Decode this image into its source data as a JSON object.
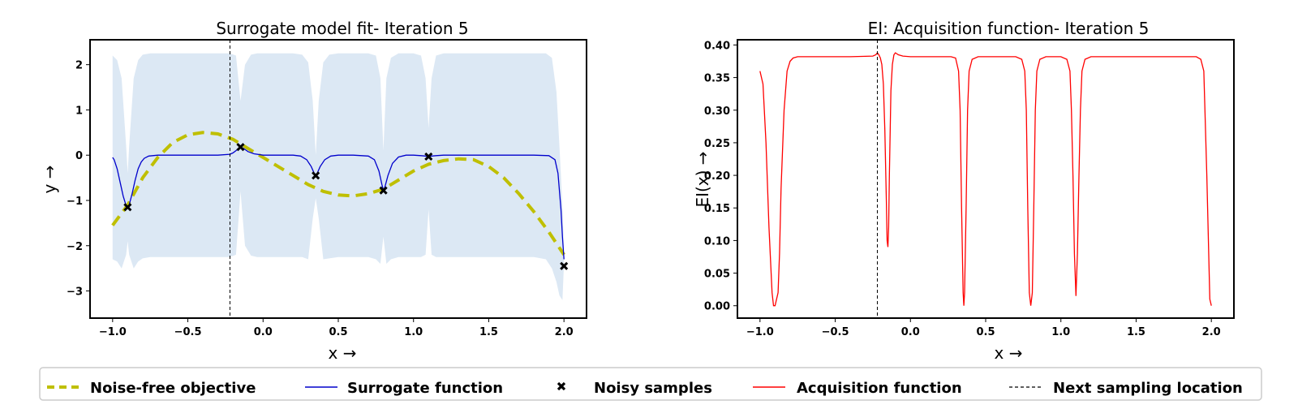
{
  "colors": {
    "objective": "#bfbf00",
    "surrogate": "#0000cc",
    "confidence": "#dce8f4",
    "acquisition": "#ff0000",
    "next": "#000000",
    "samples": "#000000"
  },
  "chart_data": [
    {
      "type": "line",
      "title": "Surrogate model fit- Iteration 5",
      "xlabel": "x →",
      "ylabel": "y →",
      "xlim": [
        -1.15,
        2.15
      ],
      "ylim": [
        -3.6,
        2.55
      ],
      "xticks": [
        -1.0,
        -0.5,
        0.0,
        0.5,
        1.0,
        1.5,
        2.0
      ],
      "xtick_labels": [
        "−1.0",
        "−0.5",
        "0.0",
        "0.5",
        "1.0",
        "1.5",
        "2.0"
      ],
      "yticks": [
        2,
        1,
        0,
        -1,
        -2,
        -3
      ],
      "ytick_labels": [
        "2",
        "1",
        "0",
        "−1",
        "−2",
        "−3"
      ],
      "next_sampling_x": -0.22,
      "series": [
        {
          "name": "Noise-free objective",
          "x": [
            -1.0,
            -0.9,
            -0.8,
            -0.7,
            -0.6,
            -0.5,
            -0.4,
            -0.3,
            -0.2,
            -0.1,
            0.0,
            0.1,
            0.2,
            0.3,
            0.4,
            0.5,
            0.6,
            0.7,
            0.8,
            0.9,
            1.0,
            1.1,
            1.2,
            1.3,
            1.4,
            1.5,
            1.6,
            1.7,
            1.8,
            1.9,
            2.0
          ],
          "y": [
            -1.55,
            -1.1,
            -0.5,
            -0.05,
            0.28,
            0.45,
            0.5,
            0.47,
            0.35,
            0.15,
            -0.05,
            -0.25,
            -0.45,
            -0.65,
            -0.8,
            -0.88,
            -0.9,
            -0.85,
            -0.75,
            -0.55,
            -0.35,
            -0.2,
            -0.12,
            -0.08,
            -0.1,
            -0.25,
            -0.5,
            -0.85,
            -1.25,
            -1.7,
            -2.2
          ]
        },
        {
          "name": "Surrogate function",
          "x": [
            -1.0,
            -0.99,
            -0.97,
            -0.95,
            -0.93,
            -0.91,
            -0.9,
            -0.89,
            -0.87,
            -0.85,
            -0.83,
            -0.81,
            -0.79,
            -0.76,
            -0.7,
            -0.5,
            -0.3,
            -0.22,
            -0.2,
            -0.18,
            -0.16,
            -0.15,
            -0.13,
            -0.1,
            -0.06,
            0.0,
            0.1,
            0.2,
            0.25,
            0.29,
            0.32,
            0.34,
            0.35,
            0.36,
            0.38,
            0.41,
            0.45,
            0.5,
            0.6,
            0.7,
            0.74,
            0.77,
            0.79,
            0.8,
            0.81,
            0.83,
            0.86,
            0.9,
            0.95,
            1.0,
            1.05,
            1.08,
            1.1,
            1.12,
            1.15,
            1.2,
            1.4,
            1.6,
            1.8,
            1.9,
            1.94,
            1.96,
            1.98,
            1.99,
            2.0
          ],
          "y": [
            -0.05,
            -0.1,
            -0.3,
            -0.6,
            -0.9,
            -1.12,
            -1.15,
            -1.1,
            -0.85,
            -0.55,
            -0.3,
            -0.15,
            -0.07,
            -0.02,
            0.0,
            0.0,
            0.0,
            0.02,
            0.05,
            0.1,
            0.16,
            0.18,
            0.15,
            0.08,
            0.03,
            0.0,
            0.0,
            0.0,
            -0.02,
            -0.1,
            -0.25,
            -0.4,
            -0.45,
            -0.4,
            -0.25,
            -0.1,
            -0.02,
            0.0,
            0.0,
            -0.02,
            -0.1,
            -0.35,
            -0.65,
            -0.78,
            -0.7,
            -0.45,
            -0.18,
            -0.04,
            0.0,
            0.0,
            -0.01,
            -0.02,
            -0.03,
            -0.02,
            -0.01,
            0.0,
            0.0,
            0.0,
            0.0,
            -0.01,
            -0.1,
            -0.4,
            -1.2,
            -1.8,
            -2.3
          ]
        }
      ],
      "samples": {
        "name": "Noisy samples",
        "x": [
          -0.9,
          -0.15,
          0.35,
          0.8,
          1.1,
          2.0
        ],
        "y": [
          -1.15,
          0.18,
          -0.45,
          -0.78,
          -0.03,
          -2.45
        ]
      },
      "confidence_band": {
        "x": [
          -1.0,
          -0.97,
          -0.94,
          -0.91,
          -0.9,
          -0.89,
          -0.86,
          -0.83,
          -0.8,
          -0.75,
          -0.7,
          -0.5,
          -0.3,
          -0.22,
          -0.18,
          -0.15,
          -0.12,
          -0.08,
          -0.04,
          0.0,
          0.2,
          0.26,
          0.3,
          0.33,
          0.35,
          0.37,
          0.4,
          0.44,
          0.5,
          0.6,
          0.7,
          0.75,
          0.78,
          0.8,
          0.82,
          0.85,
          0.9,
          1.0,
          1.05,
          1.08,
          1.1,
          1.12,
          1.15,
          1.2,
          1.4,
          1.6,
          1.8,
          1.88,
          1.92,
          1.95,
          1.97,
          1.99,
          2.0
        ],
        "upper": [
          2.2,
          2.1,
          1.7,
          0.2,
          -0.4,
          0.2,
          1.7,
          2.1,
          2.22,
          2.25,
          2.25,
          2.25,
          2.25,
          2.25,
          2.2,
          1.2,
          2.0,
          2.22,
          2.25,
          2.25,
          2.25,
          2.22,
          2.05,
          1.2,
          0.0,
          1.2,
          2.05,
          2.22,
          2.25,
          2.25,
          2.25,
          2.2,
          1.7,
          0.1,
          1.7,
          2.15,
          2.25,
          2.25,
          2.2,
          1.7,
          0.6,
          1.7,
          2.2,
          2.25,
          2.25,
          2.25,
          2.25,
          2.25,
          2.15,
          1.4,
          0.2,
          -1.1,
          -2.2
        ],
        "lower": [
          -2.3,
          -2.35,
          -2.5,
          -2.2,
          -1.9,
          -2.2,
          -2.5,
          -2.35,
          -2.28,
          -2.25,
          -2.25,
          -2.25,
          -2.25,
          -2.25,
          -2.2,
          -0.8,
          -2.0,
          -2.22,
          -2.25,
          -2.25,
          -2.25,
          -2.25,
          -2.3,
          -1.4,
          -0.95,
          -1.4,
          -2.3,
          -2.28,
          -2.25,
          -2.25,
          -2.25,
          -2.3,
          -2.4,
          -1.8,
          -2.4,
          -2.3,
          -2.25,
          -2.25,
          -2.25,
          -2.2,
          -1.2,
          -2.2,
          -2.25,
          -2.25,
          -2.25,
          -2.25,
          -2.25,
          -2.3,
          -2.5,
          -2.8,
          -3.1,
          -3.2,
          -2.4
        ]
      }
    },
    {
      "type": "line",
      "title": "EI: Acquisition function- Iteration 5",
      "xlabel": "x →",
      "ylabel": "EI(x) →",
      "xlim": [
        -1.15,
        2.15
      ],
      "ylim": [
        -0.019,
        0.408
      ],
      "xticks": [
        -1.0,
        -0.5,
        0.0,
        0.5,
        1.0,
        1.5,
        2.0
      ],
      "xtick_labels": [
        "−1.0",
        "−0.5",
        "0.0",
        "0.5",
        "1.0",
        "1.5",
        "2.0"
      ],
      "yticks": [
        0.4,
        0.35,
        0.3,
        0.25,
        0.2,
        0.15,
        0.1,
        0.05,
        0.0
      ],
      "ytick_labels": [
        "0.40",
        "0.35",
        "0.30",
        "0.25",
        "0.20",
        "0.15",
        "0.10",
        "0.05",
        "0.00"
      ],
      "next_sampling_x": -0.22,
      "series": [
        {
          "name": "Acquisition function",
          "x": [
            -1.0,
            -0.98,
            -0.96,
            -0.94,
            -0.92,
            -0.91,
            -0.9,
            -0.88,
            -0.87,
            -0.86,
            -0.84,
            -0.82,
            -0.8,
            -0.78,
            -0.75,
            -0.7,
            -0.6,
            -0.4,
            -0.25,
            -0.23,
            -0.22,
            -0.21,
            -0.2,
            -0.19,
            -0.18,
            -0.17,
            -0.16,
            -0.155,
            -0.15,
            -0.145,
            -0.14,
            -0.13,
            -0.12,
            -0.11,
            -0.1,
            -0.08,
            -0.05,
            0.0,
            0.1,
            0.2,
            0.27,
            0.3,
            0.32,
            0.33,
            0.34,
            0.35,
            0.355,
            0.36,
            0.37,
            0.38,
            0.39,
            0.41,
            0.45,
            0.5,
            0.6,
            0.7,
            0.74,
            0.76,
            0.77,
            0.78,
            0.79,
            0.8,
            0.81,
            0.82,
            0.83,
            0.84,
            0.86,
            0.9,
            0.95,
            1.0,
            1.04,
            1.06,
            1.07,
            1.08,
            1.09,
            1.1,
            1.11,
            1.12,
            1.13,
            1.14,
            1.16,
            1.2,
            1.4,
            1.6,
            1.8,
            1.9,
            1.93,
            1.95,
            1.97,
            1.99,
            2.0
          ],
          "y": [
            0.36,
            0.34,
            0.25,
            0.12,
            0.02,
            0.0,
            0.0,
            0.02,
            0.08,
            0.18,
            0.3,
            0.36,
            0.375,
            0.38,
            0.382,
            0.382,
            0.382,
            0.382,
            0.383,
            0.385,
            0.388,
            0.385,
            0.38,
            0.37,
            0.34,
            0.27,
            0.16,
            0.1,
            0.09,
            0.12,
            0.2,
            0.33,
            0.37,
            0.385,
            0.388,
            0.385,
            0.383,
            0.382,
            0.382,
            0.382,
            0.382,
            0.38,
            0.36,
            0.3,
            0.15,
            0.02,
            0.0,
            0.02,
            0.15,
            0.3,
            0.36,
            0.378,
            0.382,
            0.382,
            0.382,
            0.382,
            0.378,
            0.36,
            0.3,
            0.15,
            0.02,
            0.0,
            0.02,
            0.15,
            0.3,
            0.36,
            0.378,
            0.382,
            0.382,
            0.382,
            0.378,
            0.36,
            0.3,
            0.2,
            0.08,
            0.015,
            0.08,
            0.2,
            0.3,
            0.36,
            0.378,
            0.382,
            0.382,
            0.382,
            0.382,
            0.382,
            0.378,
            0.36,
            0.2,
            0.01,
            0.0
          ]
        }
      ]
    }
  ],
  "legend": {
    "items": [
      {
        "label": "Noise-free objective",
        "kind": "dashed-line",
        "color": "#bfbf00"
      },
      {
        "label": "Surrogate function",
        "kind": "line",
        "color": "#0000cc"
      },
      {
        "label": "Noisy samples",
        "kind": "marker-x",
        "color": "#000000"
      },
      {
        "label": "Acquisition function",
        "kind": "line",
        "color": "#ff0000"
      },
      {
        "label": "Next sampling location",
        "kind": "dashed-thin",
        "color": "#000000"
      }
    ]
  }
}
